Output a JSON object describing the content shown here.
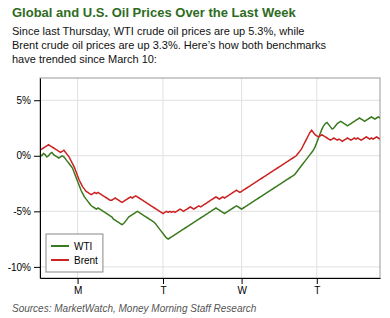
{
  "chart_data": {
    "type": "line",
    "title": "Global and U.S. Oil Prices Over the Last Week",
    "subtitle": "Since last Thursday, WTI crude oil prices are up 5.3%, while\nBrent crude oil prices are up 3.3%. Here’s how both benchmarks\nhave trended since March 10:",
    "source": "Sources: MarketWatch, Money Morning Staff Research",
    "categories": [
      null,
      null,
      null,
      null,
      null,
      null,
      null,
      null,
      null,
      null,
      null,
      null,
      null,
      null,
      null,
      null,
      null,
      null,
      null,
      null,
      null,
      null,
      "M",
      null,
      null,
      null,
      null,
      null,
      null,
      null,
      null,
      null,
      null,
      null,
      null,
      null,
      null,
      null,
      null,
      null,
      null,
      null,
      null,
      null,
      null,
      null,
      null,
      null,
      null,
      null,
      null,
      null,
      null,
      null,
      null,
      null,
      null,
      null,
      null,
      null,
      null,
      null,
      null,
      null,
      null,
      null,
      null,
      null,
      null,
      null,
      null,
      null,
      "T",
      null,
      null,
      null,
      null,
      null,
      null,
      null,
      null,
      null,
      null,
      null,
      null,
      null,
      null,
      null,
      null,
      null,
      null,
      null,
      null,
      null,
      null,
      null,
      null,
      null,
      null,
      null,
      null,
      null,
      null,
      null,
      null,
      null,
      null,
      null,
      null,
      null,
      null,
      null,
      null,
      null,
      null,
      null,
      null,
      null,
      "W",
      null,
      null,
      null,
      null,
      null,
      null,
      null,
      null,
      null,
      null,
      null,
      null,
      null,
      null,
      null,
      null,
      null,
      null,
      null,
      null,
      null,
      null,
      null,
      null,
      null,
      null,
      null,
      null,
      null,
      null,
      null,
      null,
      null,
      null,
      null,
      null,
      null,
      null,
      null,
      null,
      null,
      null,
      null,
      "T",
      null,
      null,
      null,
      null,
      null,
      null,
      null,
      null,
      null,
      null,
      null,
      null,
      null,
      null,
      null,
      null,
      null,
      null,
      null,
      null,
      null,
      null,
      null,
      null,
      null,
      null,
      null,
      null,
      null,
      null,
      null,
      null,
      null,
      null,
      null,
      null,
      null
    ],
    "series": [
      {
        "name": "WTI",
        "color": "#3a7a1e",
        "values": [
          0.1,
          0.0,
          0.2,
          0.1,
          -0.1,
          0.0,
          0.2,
          0.3,
          0.1,
          0.0,
          -0.1,
          -0.2,
          -0.1,
          0.0,
          -0.1,
          -0.3,
          -0.5,
          -0.7,
          -0.9,
          -1.1,
          -1.5,
          -1.9,
          -2.3,
          -2.7,
          -3.1,
          -3.4,
          -3.7,
          -3.9,
          -4.1,
          -4.3,
          -4.5,
          -4.6,
          -4.7,
          -4.8,
          -4.7,
          -4.8,
          -4.9,
          -5.0,
          -5.1,
          -5.2,
          -5.3,
          -5.4,
          -5.5,
          -5.7,
          -5.8,
          -5.9,
          -6.0,
          -6.1,
          -6.2,
          -6.1,
          -5.9,
          -5.7,
          -5.5,
          -5.4,
          -5.3,
          -5.2,
          -5.1,
          -5.0,
          -5.1,
          -5.2,
          -5.3,
          -5.4,
          -5.5,
          -5.6,
          -5.7,
          -5.8,
          -5.9,
          -6.0,
          -6.2,
          -6.4,
          -6.6,
          -6.8,
          -7.0,
          -7.2,
          -7.4,
          -7.5,
          -7.4,
          -7.3,
          -7.2,
          -7.1,
          -7.0,
          -6.9,
          -6.8,
          -6.7,
          -6.6,
          -6.5,
          -6.4,
          -6.3,
          -6.2,
          -6.1,
          -6.0,
          -5.9,
          -5.8,
          -5.7,
          -5.6,
          -5.5,
          -5.4,
          -5.3,
          -5.2,
          -5.1,
          -5.0,
          -4.9,
          -4.8,
          -4.7,
          -4.8,
          -4.9,
          -5.0,
          -5.1,
          -5.2,
          -5.1,
          -5.0,
          -4.9,
          -4.8,
          -4.7,
          -4.6,
          -4.5,
          -4.6,
          -4.7,
          -4.8,
          -4.7,
          -4.6,
          -4.5,
          -4.4,
          -4.3,
          -4.2,
          -4.1,
          -4.0,
          -3.9,
          -3.8,
          -3.7,
          -3.6,
          -3.5,
          -3.4,
          -3.3,
          -3.2,
          -3.1,
          -3.0,
          -2.9,
          -2.8,
          -2.7,
          -2.6,
          -2.5,
          -2.4,
          -2.3,
          -2.2,
          -2.1,
          -2.0,
          -1.9,
          -1.8,
          -1.7,
          -1.5,
          -1.3,
          -1.1,
          -0.9,
          -0.7,
          -0.5,
          -0.3,
          -0.1,
          0.1,
          0.3,
          0.5,
          0.8,
          1.2,
          1.6,
          2.0,
          2.4,
          2.7,
          2.9,
          3.0,
          2.8,
          2.6,
          2.4,
          2.5,
          2.7,
          2.9,
          3.0,
          3.1,
          3.0,
          2.9,
          2.8,
          2.7,
          2.8,
          2.9,
          3.0,
          3.1,
          3.2,
          3.3,
          3.4,
          3.3,
          3.2,
          3.1,
          3.2,
          3.3,
          3.4,
          3.5,
          3.4,
          3.3,
          3.4,
          3.5,
          3.4
        ]
      },
      {
        "name": "Brent",
        "color": "#cc2222",
        "values": [
          0.5,
          0.6,
          0.7,
          0.8,
          0.9,
          1.0,
          0.9,
          0.8,
          0.7,
          0.6,
          0.5,
          0.4,
          0.3,
          0.4,
          0.5,
          0.3,
          0.1,
          -0.1,
          -0.4,
          -0.7,
          -1.0,
          -1.4,
          -1.8,
          -2.2,
          -2.5,
          -2.8,
          -3.0,
          -3.2,
          -3.3,
          -3.4,
          -3.5,
          -3.4,
          -3.3,
          -3.4,
          -3.3,
          -3.4,
          -3.5,
          -3.6,
          -3.7,
          -3.8,
          -3.9,
          -4.0,
          -4.0,
          -3.9,
          -3.8,
          -3.9,
          -4.0,
          -4.1,
          -4.2,
          -4.1,
          -4.0,
          -3.9,
          -3.8,
          -3.7,
          -3.8,
          -3.7,
          -3.6,
          -3.7,
          -3.8,
          -3.9,
          -4.0,
          -4.1,
          -4.2,
          -4.3,
          -4.4,
          -4.5,
          -4.6,
          -4.7,
          -4.8,
          -4.9,
          -5.0,
          -5.1,
          -5.2,
          -5.1,
          -5.0,
          -5.1,
          -5.0,
          -5.1,
          -5.0,
          -5.1,
          -5.0,
          -4.9,
          -4.8,
          -4.9,
          -5.0,
          -4.9,
          -4.8,
          -4.7,
          -4.6,
          -4.7,
          -4.8,
          -4.7,
          -4.6,
          -4.5,
          -4.6,
          -4.5,
          -4.4,
          -4.3,
          -4.2,
          -4.1,
          -4.0,
          -3.9,
          -3.8,
          -3.7,
          -3.8,
          -3.9,
          -3.8,
          -3.7,
          -3.8,
          -3.7,
          -3.6,
          -3.5,
          -3.4,
          -3.3,
          -3.2,
          -3.1,
          -3.2,
          -3.3,
          -3.2,
          -3.1,
          -3.0,
          -2.9,
          -2.8,
          -2.7,
          -2.6,
          -2.5,
          -2.4,
          -2.3,
          -2.2,
          -2.1,
          -2.0,
          -1.9,
          -1.8,
          -1.7,
          -1.6,
          -1.5,
          -1.4,
          -1.3,
          -1.2,
          -1.1,
          -1.0,
          -0.9,
          -0.8,
          -0.7,
          -0.6,
          -0.5,
          -0.4,
          -0.3,
          -0.2,
          -0.1,
          0.0,
          0.2,
          0.4,
          0.6,
          0.9,
          1.2,
          1.5,
          1.8,
          2.1,
          2.3,
          2.1,
          1.9,
          1.8,
          1.7,
          1.8,
          1.9,
          1.8,
          1.7,
          1.6,
          1.5,
          1.4,
          1.5,
          1.6,
          1.5,
          1.4,
          1.5,
          1.4,
          1.3,
          1.4,
          1.5,
          1.6,
          1.5,
          1.4,
          1.5,
          1.6,
          1.5,
          1.6,
          1.5,
          1.4,
          1.5,
          1.6,
          1.7,
          1.6,
          1.5,
          1.6,
          1.5,
          1.6,
          1.7,
          1.6,
          1.5
        ]
      }
    ],
    "ylim": [
      -11,
      7
    ],
    "yticks": [
      {
        "value": -10,
        "label": "-10%"
      },
      {
        "value": -5,
        "label": "-5%"
      },
      {
        "value": 0,
        "label": "0%"
      },
      {
        "value": 5,
        "label": "5%"
      }
    ],
    "grid": true,
    "legend": "lower left"
  }
}
